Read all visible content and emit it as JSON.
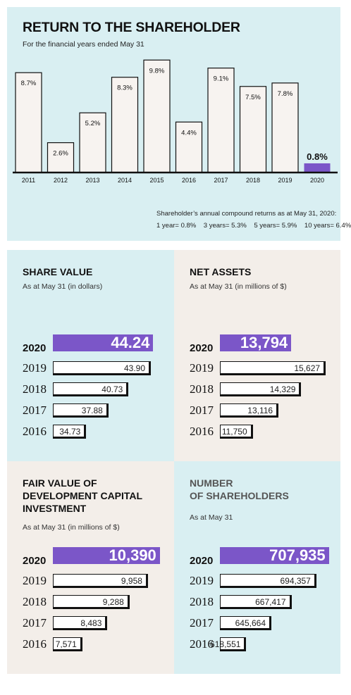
{
  "return": {
    "title": "RETURN TO THE SHAREHOLDER",
    "subtitle": "For the financial years ended May 31",
    "note_line1": "Shareholder’s annual compound returns as at May 31, 2020:",
    "note_line2": "1 year= 0.8%    3 years= 5.3%    5 years= 5.9%    10 years= 6.4%"
  },
  "share_value": {
    "title": "SHARE VALUE",
    "subtitle": "As at May 31 (in dollars)"
  },
  "net_assets": {
    "title": "NET ASSETS",
    "subtitle": "As at May 31 (in millions of $)"
  },
  "fair_value": {
    "title": "FAIR VALUE OF\nDEVELOPMENT CAPITAL\nINVESTMENT",
    "subtitle": "As at May 31 (in millions of $)"
  },
  "shareholders": {
    "title": "NUMBER\nOF SHAREHOLDERS",
    "subtitle": "As at May 31"
  },
  "colors": {
    "highlight": "#7b56c8",
    "panel_blue": "#d9eff2",
    "panel_beige": "#f3eee9",
    "bar_fill": "#f7f3f0",
    "outline": "#111111"
  },
  "chart_data": [
    {
      "type": "bar",
      "title": "RETURN TO THE SHAREHOLDER",
      "categories": [
        "2011",
        "2012",
        "2013",
        "2014",
        "2015",
        "2016",
        "2017",
        "2018",
        "2019",
        "2020"
      ],
      "values": [
        8.7,
        2.6,
        5.2,
        8.3,
        9.8,
        4.4,
        9.1,
        7.5,
        7.8,
        0.8
      ],
      "labels": [
        "8.7%",
        "2.6%",
        "5.2%",
        "8.3%",
        "9.8%",
        "4.4%",
        "9.1%",
        "7.5%",
        "7.8%",
        "0.8%"
      ],
      "highlight_index": 9,
      "ylim": [
        0,
        10
      ]
    },
    {
      "type": "bar",
      "orientation": "horizontal",
      "title": "SHARE VALUE",
      "categories": [
        "2020",
        "2019",
        "2018",
        "2017",
        "2016"
      ],
      "values": [
        44.24,
        43.9,
        40.73,
        37.88,
        34.73
      ],
      "labels": [
        "44.24",
        "43.90",
        "40.73",
        "37.88",
        "34.73"
      ],
      "xlim": [
        30,
        46
      ]
    },
    {
      "type": "bar",
      "orientation": "horizontal",
      "title": "NET ASSETS",
      "categories": [
        "2020",
        "2019",
        "2018",
        "2017",
        "2016"
      ],
      "values": [
        13794,
        15627,
        14329,
        13116,
        11750
      ],
      "labels": [
        "13,794",
        "15,627",
        "14,329",
        "13,116",
        "11,750"
      ],
      "xlim": [
        10000,
        16000
      ]
    },
    {
      "type": "bar",
      "orientation": "horizontal",
      "title": "FAIR VALUE OF DEVELOPMENT CAPITAL INVESTMENT",
      "categories": [
        "2020",
        "2019",
        "2018",
        "2017",
        "2016"
      ],
      "values": [
        10390,
        9958,
        9288,
        8483,
        7571
      ],
      "labels": [
        "10,390",
        "9,958",
        "9,288",
        "8,483",
        "7,571"
      ],
      "xlim": [
        6500,
        10600
      ]
    },
    {
      "type": "bar",
      "orientation": "horizontal",
      "title": "NUMBER OF SHAREHOLDERS",
      "categories": [
        "2020",
        "2019",
        "2018",
        "2017",
        "2016"
      ],
      "values": [
        707935,
        694357,
        667417,
        645664,
        618551
      ],
      "labels": [
        "707,935",
        "694,357",
        "667,417",
        "645,664",
        "618,551"
      ],
      "xlim": [
        590000,
        712000
      ]
    }
  ]
}
